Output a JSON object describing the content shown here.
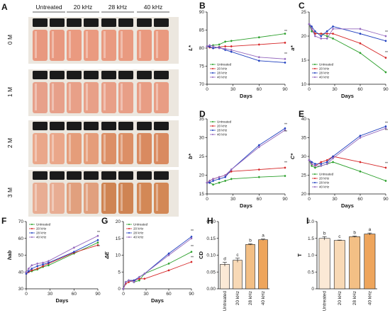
{
  "photo": {
    "letter": "A",
    "headers": [
      "Untreated",
      "20 kHz",
      "28 kHz",
      "40 kHz"
    ],
    "rows": [
      {
        "label": "0 M",
        "colors": [
          "#e8987f",
          "#ea9a80",
          "#e99a80",
          "#e9997f"
        ]
      },
      {
        "label": "1 M",
        "colors": [
          "#e7a08a",
          "#e8a088",
          "#e89f87",
          "#e89d84"
        ]
      },
      {
        "label": "2 M",
        "colors": [
          "#eaa78a",
          "#e59d7a",
          "#dc8f66",
          "#d98a60"
        ]
      },
      {
        "label": "3 M",
        "colors": [
          "#e8ad93",
          "#e1a07e",
          "#cf8453",
          "#d38856"
        ]
      }
    ]
  },
  "legend": [
    "Untreated",
    "20 kHz",
    "28 kHz",
    "40 kHz"
  ],
  "colors": {
    "Untreated": "#2ca02c",
    "20 kHz": "#d62728",
    "28 kHz": "#1f3fbf",
    "40 kHz": "#9467bd"
  },
  "chart_data": [
    {
      "letter": "B",
      "type": "line",
      "ylabel": "L*",
      "xlabel": "Days",
      "x": [
        0,
        3,
        7,
        14,
        21,
        28,
        60,
        90
      ],
      "xticks": [
        0,
        30,
        60,
        90
      ],
      "ylim": [
        70,
        90
      ],
      "yticks": [
        70,
        75,
        80,
        85,
        90
      ],
      "series": [
        {
          "name": "Untreated",
          "values": [
            80.5,
            80.6,
            80.8,
            81.0,
            81.8,
            82.0,
            83.0,
            84.0
          ]
        },
        {
          "name": "20 kHz",
          "values": [
            80.5,
            80.2,
            80.0,
            80.3,
            80.5,
            80.5,
            81.0,
            81.5
          ]
        },
        {
          "name": "28 kHz",
          "values": [
            80.5,
            80.4,
            80.0,
            80.2,
            79.5,
            79.0,
            76.5,
            76.0
          ]
        },
        {
          "name": "40 kHz",
          "values": [
            80.5,
            80.8,
            80.5,
            80.0,
            79.8,
            79.5,
            77.5,
            77.0
          ]
        }
      ],
      "sig": [
        {
          "x": 90,
          "y": 84.3,
          "text": "**"
        },
        {
          "x": 90,
          "y": 78.0,
          "text": "**"
        }
      ],
      "legend_pos": "bottom-left"
    },
    {
      "letter": "C",
      "type": "line",
      "ylabel": "a*",
      "xlabel": "Days",
      "x": [
        0,
        3,
        7,
        14,
        21,
        28,
        60,
        90
      ],
      "xticks": [
        0,
        30,
        60,
        90
      ],
      "ylim": [
        10,
        25
      ],
      "yticks": [
        10,
        15,
        20,
        25
      ],
      "series": [
        {
          "name": "Untreated",
          "values": [
            22.5,
            21.0,
            20.5,
            20.5,
            20.0,
            19.5,
            16.5,
            12.5
          ]
        },
        {
          "name": "20 kHz",
          "values": [
            22.5,
            21.5,
            20.5,
            20.5,
            20.5,
            20.5,
            18.5,
            15.5
          ]
        },
        {
          "name": "28 kHz",
          "values": [
            22.5,
            22.0,
            21.0,
            20.0,
            21.0,
            22.0,
            20.5,
            19.0
          ]
        },
        {
          "name": "40 kHz",
          "values": [
            22.5,
            21.5,
            20.0,
            19.5,
            19.5,
            21.5,
            21.5,
            20.0
          ]
        }
      ],
      "sig": [
        {
          "x": 90,
          "y": 20.6,
          "text": "**"
        },
        {
          "x": 90,
          "y": 16.3,
          "text": "**"
        }
      ],
      "legend_pos": "bottom-left"
    },
    {
      "letter": "D",
      "type": "line",
      "ylabel": "b*",
      "xlabel": "Days",
      "x": [
        0,
        3,
        7,
        14,
        21,
        28,
        60,
        90
      ],
      "xticks": [
        0,
        30,
        60,
        90
      ],
      "ylim": [
        15,
        35
      ],
      "yticks": [
        15,
        20,
        25,
        30,
        35
      ],
      "series": [
        {
          "name": "Untreated",
          "values": [
            18.0,
            18.0,
            17.5,
            18.0,
            18.5,
            19.0,
            19.5,
            19.8
          ]
        },
        {
          "name": "20 kHz",
          "values": [
            18.0,
            18.5,
            19.0,
            19.5,
            20.0,
            21.0,
            21.5,
            22.0
          ]
        },
        {
          "name": "28 kHz",
          "values": [
            18.0,
            18.0,
            18.5,
            19.0,
            19.5,
            21.5,
            28.0,
            32.5
          ]
        },
        {
          "name": "40 kHz",
          "values": [
            18.0,
            18.5,
            19.0,
            19.5,
            20.0,
            21.5,
            27.5,
            32.0
          ]
        }
      ],
      "sig": [
        {
          "x": 90,
          "y": 33.2,
          "text": "**"
        },
        {
          "x": 90,
          "y": 31.2,
          "text": "**"
        },
        {
          "x": 90,
          "y": 23.0,
          "text": "**"
        }
      ],
      "legend_pos": "top-left"
    },
    {
      "letter": "E",
      "type": "line",
      "ylabel": "C*",
      "xlabel": "Days",
      "x": [
        0,
        3,
        7,
        14,
        21,
        28,
        60,
        90
      ],
      "xticks": [
        0,
        30,
        60,
        90
      ],
      "ylim": [
        20,
        40
      ],
      "yticks": [
        20,
        25,
        30,
        35,
        40
      ],
      "series": [
        {
          "name": "Untreated",
          "values": [
            29.0,
            27.5,
            27.0,
            27.5,
            28.0,
            28.5,
            26.0,
            23.5
          ]
        },
        {
          "name": "20 kHz",
          "values": [
            29.0,
            28.0,
            27.5,
            28.5,
            29.0,
            30.0,
            28.5,
            27.0
          ]
        },
        {
          "name": "28 kHz",
          "values": [
            29.0,
            28.5,
            28.0,
            28.0,
            28.5,
            30.0,
            35.5,
            38.0
          ]
        },
        {
          "name": "40 kHz",
          "values": [
            29.0,
            28.0,
            27.5,
            27.5,
            28.0,
            29.5,
            35.0,
            37.5
          ]
        }
      ],
      "sig": [
        {
          "x": 90,
          "y": 38.6,
          "text": "**"
        },
        {
          "x": 90,
          "y": 36.6,
          "text": "**"
        },
        {
          "x": 90,
          "y": 27.8,
          "text": "**"
        }
      ],
      "legend_pos": "bottom-left"
    },
    {
      "letter": "F",
      "type": "line",
      "ylabel": "hab",
      "xlabel": "Days",
      "x": [
        0,
        3,
        7,
        14,
        21,
        28,
        60,
        90
      ],
      "xticks": [
        0,
        30,
        60,
        90
      ],
      "ylim": [
        30,
        70
      ],
      "yticks": [
        30,
        40,
        50,
        60,
        70
      ],
      "series": [
        {
          "name": "Untreated",
          "values": [
            39.0,
            40.0,
            40.5,
            41.5,
            43.0,
            44.0,
            51.0,
            57.5
          ]
        },
        {
          "name": "20 kHz",
          "values": [
            39.0,
            40.0,
            41.0,
            42.0,
            43.5,
            45.0,
            51.5,
            56.0
          ]
        },
        {
          "name": "28 kHz",
          "values": [
            39.0,
            40.5,
            42.0,
            43.5,
            44.5,
            45.5,
            52.0,
            59.0
          ]
        },
        {
          "name": "40 kHz",
          "values": [
            40.0,
            42.0,
            44.0,
            45.0,
            45.5,
            46.5,
            54.5,
            61.5
          ]
        }
      ],
      "sig": [
        {
          "x": 90,
          "y": 62.8,
          "text": "**"
        },
        {
          "x": 90,
          "y": 54.5,
          "text": "**"
        }
      ],
      "legend_pos": "top-left"
    },
    {
      "letter": "G",
      "type": "line",
      "ylabel": "ΔE",
      "xlabel": "Days",
      "x": [
        0,
        3,
        7,
        14,
        21,
        28,
        60,
        90
      ],
      "xticks": [
        0,
        30,
        60,
        90
      ],
      "ylim": [
        0,
        20
      ],
      "yticks": [
        0,
        5,
        10,
        15,
        20
      ],
      "series": [
        {
          "name": "Untreated",
          "values": [
            0.0,
            2.0,
            2.5,
            2.0,
            2.5,
            4.5,
            7.5,
            11.0
          ]
        },
        {
          "name": "20 kHz",
          "values": [
            0.0,
            1.5,
            2.0,
            2.5,
            3.0,
            3.0,
            5.5,
            8.0
          ]
        },
        {
          "name": "28 kHz",
          "values": [
            0.0,
            2.0,
            2.5,
            2.5,
            3.5,
            4.5,
            10.5,
            15.5
          ]
        },
        {
          "name": "40 kHz",
          "values": [
            0.0,
            2.0,
            2.5,
            2.0,
            3.5,
            4.5,
            10.0,
            15.0
          ]
        }
      ],
      "sig": [
        {
          "x": 90,
          "y": 16.8,
          "text": "**"
        },
        {
          "x": 90,
          "y": 12.2,
          "text": "**"
        },
        {
          "x": 90,
          "y": 9.0,
          "text": "**"
        }
      ],
      "legend_pos": "top-left"
    },
    {
      "letter": "H",
      "type": "bar",
      "ylabel": "CD",
      "categories": [
        "Untreated",
        "20 kHz",
        "28 kHz",
        "40 kHz"
      ],
      "values": [
        0.073,
        0.085,
        0.132,
        0.146
      ],
      "errors": [
        0.006,
        0.006,
        0.002,
        0.002
      ],
      "letters": [
        "d",
        "c",
        "b",
        "a"
      ],
      "ylim": [
        0,
        0.2
      ],
      "yticks": [
        0.0,
        0.05,
        0.1,
        0.15,
        0.2
      ],
      "ytick_labels": [
        "0.00",
        "0.05",
        "0.10",
        "0.15",
        "0.20"
      ],
      "bar_colors": [
        "#fbe9d6",
        "#f8d9b6",
        "#f3bf85",
        "#eea55c"
      ]
    },
    {
      "letter": "I",
      "type": "bar",
      "ylabel": "T",
      "categories": [
        "Untreated",
        "20 kHz",
        "28 kHz",
        "40 kHz"
      ],
      "values": [
        1.5,
        1.44,
        1.55,
        1.63
      ],
      "errors": [
        0.05,
        0.01,
        0.02,
        0.03
      ],
      "letters": [
        "b",
        "c",
        "b",
        "a"
      ],
      "ylim": [
        0,
        2.0
      ],
      "yticks": [
        0.0,
        0.5,
        1.0,
        1.5,
        2.0
      ],
      "ytick_labels": [
        "0",
        "0.5",
        "1.0",
        "1.5",
        "2.0"
      ],
      "bar_colors": [
        "#fbe9d6",
        "#f8d9b6",
        "#f3bf85",
        "#eea55c"
      ]
    }
  ]
}
